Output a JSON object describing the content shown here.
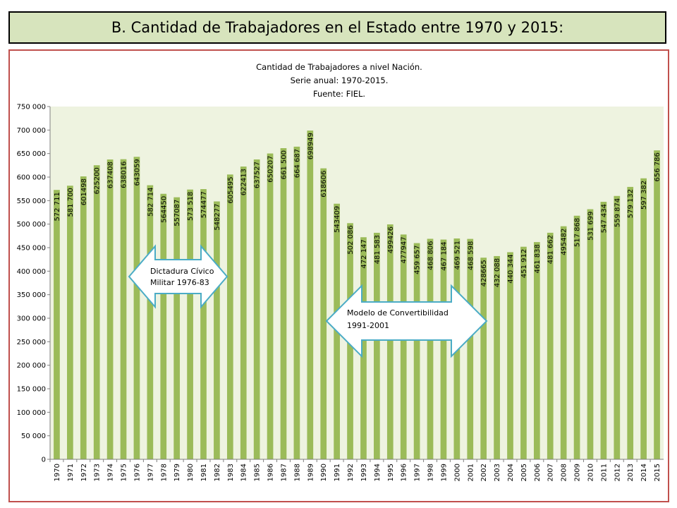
{
  "header": {
    "title": "B. Cantidad de Trabajadores en el Estado entre 1970 y 2015:"
  },
  "colors": {
    "header_bg": "#d7e4bd",
    "plot_bg": "#eef3e0",
    "bar": "#9bbb59",
    "frame": "#c0504d",
    "arrow_border": "#4bacc6"
  },
  "chart_data": {
    "type": "bar",
    "title_lines": [
      "Cantidad de Trabajadores a nivel Nación.",
      "Serie anual: 1970-2015.",
      "Fuente: FIEL."
    ],
    "categories": [
      "1970",
      "1971",
      "1972",
      "1973",
      "1974",
      "1975",
      "1976",
      "1977",
      "1978",
      "1979",
      "1980",
      "1981",
      "1982",
      "1983",
      "1984",
      "1985",
      "1986",
      "1987",
      "1988",
      "1989",
      "1990",
      "1991",
      "1992",
      "1993",
      "1994",
      "1995",
      "1996",
      "1997",
      "1998",
      "1999",
      "2000",
      "2001",
      "2002",
      "2003",
      "2004",
      "2005",
      "2006",
      "2007",
      "2008",
      "2009",
      "2010",
      "2011",
      "2012",
      "2013",
      "2014",
      "2015"
    ],
    "values": [
      572711,
      581700,
      601498,
      625200,
      637408,
      638016,
      643059,
      582714,
      564450,
      557087,
      573518,
      574477,
      548277,
      605495,
      622413,
      637527,
      650207,
      661500,
      664687,
      698949,
      618606,
      543409,
      502086,
      472147,
      481583,
      499426,
      477947,
      459657,
      468806,
      467184,
      469521,
      468598,
      428665,
      432088,
      440344,
      451912,
      461838,
      481662,
      495482,
      517868,
      531699,
      547434,
      559874,
      579132,
      597382,
      656786
    ],
    "data_labels": [
      "572 711",
      "581 700",
      "601498",
      "625200",
      "637408",
      "638016",
      "643059",
      "582 714",
      "564450",
      "557087",
      "573 518",
      "574477",
      "548277",
      "605495",
      "622413",
      "637527",
      "650207",
      "661 500",
      "664 687",
      "698949",
      "618606",
      "543409",
      "502 086",
      "472 147",
      "481 583",
      "499426",
      "477947",
      "459 657",
      "468 806",
      "467 184",
      "469 521",
      "468 598",
      "428665",
      "432 088",
      "440 344",
      "451 912",
      "461 838",
      "481 662",
      "495482",
      "517 868",
      "531 699",
      "547 434",
      "559 874",
      "579 132",
      "597 382",
      "656 786"
    ],
    "y_ticks": [
      "0",
      "50 000",
      "100 000",
      "150 000",
      "200 000",
      "250 000",
      "300 000",
      "350 000",
      "400 000",
      "450 000",
      "500 000",
      "550 000",
      "600 000",
      "650 000",
      "700 000",
      "750 000"
    ],
    "ylim": [
      0,
      750000
    ],
    "xlabel": "",
    "ylabel": "",
    "legend": "none",
    "grid": false,
    "annotations": [
      {
        "text_lines": [
          "Dictadura Cívico",
          "Militar 1976-83"
        ]
      },
      {
        "text_lines": [
          "Modelo de Convertibilidad",
          "1991-2001"
        ]
      }
    ]
  }
}
